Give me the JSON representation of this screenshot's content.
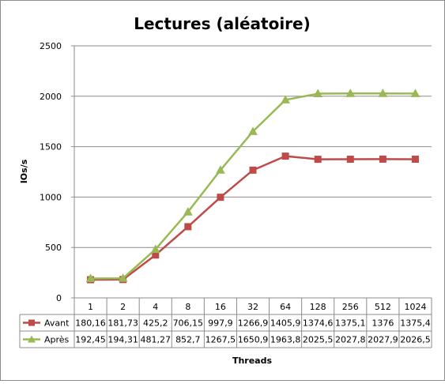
{
  "chart_data": {
    "type": "line",
    "title": "Lectures (aléatoire)",
    "xlabel": "Threads",
    "ylabel": "IOs/s",
    "ylim": [
      0,
      2500
    ],
    "yticks": [
      "0",
      "500",
      "1000",
      "1500",
      "2000",
      "2500"
    ],
    "grid": true,
    "legend": "data-table-left",
    "categories": [
      "1",
      "2",
      "4",
      "8",
      "16",
      "32",
      "64",
      "128",
      "256",
      "512",
      "1024"
    ],
    "series": [
      {
        "name": "Avant",
        "color": "#be4b48",
        "marker": "square",
        "values": [
          180.16,
          181.73,
          425.2,
          706.15,
          997.9,
          1266.9,
          1405.9,
          1374.6,
          1375.1,
          1376,
          1375.4
        ],
        "labels": [
          "180,16",
          "181,73",
          "425,2",
          "706,15",
          "997,9",
          "1266,9",
          "1405,9",
          "1374,6",
          "1375,1",
          "1376",
          "1375,4"
        ]
      },
      {
        "name": "Après",
        "color": "#98b954",
        "marker": "triangle",
        "values": [
          192.45,
          194.31,
          481.27,
          852.7,
          1267.5,
          1650.9,
          1963.8,
          2025.5,
          2027.8,
          2027.9,
          2026.5
        ],
        "labels": [
          "192,45",
          "194,31",
          "481,27",
          "852,7",
          "1267,5",
          "1650,9",
          "1963,8",
          "2025,5",
          "2027,8",
          "2027,9",
          "2026,5"
        ]
      }
    ]
  }
}
